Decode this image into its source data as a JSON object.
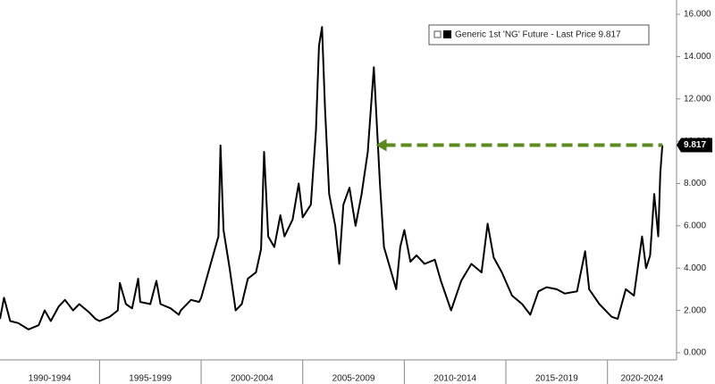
{
  "chart_data": {
    "type": "line",
    "x": [
      1990.1,
      1990.3,
      1990.6,
      1991,
      1991.5,
      1992,
      1992.3,
      1992.6,
      1993,
      1993.3,
      1993.7,
      1994,
      1994.5,
      1994.8,
      1995,
      1995.5,
      1995.9,
      1996,
      1996.3,
      1996.6,
      1996.9,
      1997,
      1997.5,
      1997.8,
      1998,
      1998.5,
      1998.9,
      1999,
      1999.5,
      1999.9,
      2000,
      2000.5,
      2000.85,
      2000.95,
      2001.1,
      2001.4,
      2001.7,
      2002,
      2002.3,
      2002.7,
      2002.95,
      2003.1,
      2003.3,
      2003.6,
      2003.9,
      2004.1,
      2004.5,
      2004.8,
      2005,
      2005.4,
      2005.65,
      2005.8,
      2005.95,
      2006.1,
      2006.3,
      2006.6,
      2006.8,
      2007,
      2007.3,
      2007.6,
      2007.9,
      2008.2,
      2008.5,
      2008.8,
      2009,
      2009.3,
      2009.6,
      2009.8,
      2010,
      2010.3,
      2010.6,
      2011,
      2011.5,
      2011.8,
      2012.3,
      2012.8,
      2013.3,
      2013.8,
      2014.1,
      2014.4,
      2014.8,
      2015.3,
      2015.8,
      2016.2,
      2016.6,
      2017,
      2017.5,
      2017.9,
      2018.5,
      2018.9,
      2019.1,
      2019.6,
      2020.2,
      2020.5,
      2020.9,
      2021.3,
      2021.7,
      2021.9,
      2022.1,
      2022.3,
      2022.5,
      2022.6,
      2022.7
    ],
    "series": [
      {
        "name": "Generic 1st 'NG' Future - Last Price 9.817",
        "color": "#000000",
        "values": [
          1.6,
          2.6,
          1.5,
          1.4,
          1.1,
          1.3,
          2.0,
          1.5,
          2.2,
          2.5,
          2.0,
          2.3,
          1.9,
          1.6,
          1.5,
          1.7,
          2.0,
          3.3,
          2.3,
          2.1,
          3.5,
          2.4,
          2.3,
          3.4,
          2.3,
          2.1,
          1.8,
          2.0,
          2.5,
          2.4,
          2.6,
          4.3,
          5.5,
          9.8,
          5.8,
          4.0,
          2.0,
          2.3,
          3.5,
          3.8,
          4.9,
          9.5,
          5.5,
          5.0,
          6.5,
          5.5,
          6.3,
          8.0,
          6.4,
          7.0,
          10.5,
          14.5,
          15.4,
          11.5,
          7.5,
          6.0,
          4.2,
          7.0,
          7.8,
          6.0,
          7.5,
          9.5,
          13.5,
          8.0,
          5.0,
          4.0,
          3.0,
          5.0,
          5.8,
          4.3,
          4.6,
          4.2,
          4.4,
          3.4,
          2.0,
          3.4,
          4.2,
          3.8,
          6.1,
          4.5,
          3.8,
          2.7,
          2.3,
          1.8,
          2.9,
          3.1,
          3.0,
          2.8,
          2.9,
          4.8,
          3.0,
          2.3,
          1.7,
          1.6,
          3.0,
          2.7,
          5.5,
          4.0,
          4.6,
          7.5,
          5.5,
          8.5,
          9.817
        ]
      }
    ],
    "last_price_label": "9.817",
    "xlim": [
      1990.1,
      2023.4
    ],
    "ylim": [
      0,
      16
    ],
    "yticks": [
      {
        "value": 0,
        "label": "0.000"
      },
      {
        "value": 2,
        "label": "2.000"
      },
      {
        "value": 4,
        "label": "4.000"
      },
      {
        "value": 6,
        "label": "6.000"
      },
      {
        "value": 8,
        "label": "8.000"
      },
      {
        "value": 10,
        "label": "10.000"
      },
      {
        "value": 12,
        "label": "12.000"
      },
      {
        "value": 14,
        "label": "14.000"
      },
      {
        "value": 16,
        "label": "16.000"
      }
    ],
    "periods": [
      {
        "label": "1990-1994",
        "start": 1990,
        "end": 1995
      },
      {
        "label": "1995-1999",
        "start": 1995,
        "end": 2000
      },
      {
        "label": "2000-2004",
        "start": 2000,
        "end": 2005
      },
      {
        "label": "2005-2009",
        "start": 2005,
        "end": 2010
      },
      {
        "label": "2010-2014",
        "start": 2010,
        "end": 2015
      },
      {
        "label": "2015-2019",
        "start": 2015,
        "end": 2020
      },
      {
        "label": "2020-2024",
        "start": 2020,
        "end": 2025
      }
    ],
    "arrow": {
      "x_start": 2008.6,
      "x_end": 2023.4,
      "y": 9.817,
      "color": "#5b8a1f"
    }
  }
}
